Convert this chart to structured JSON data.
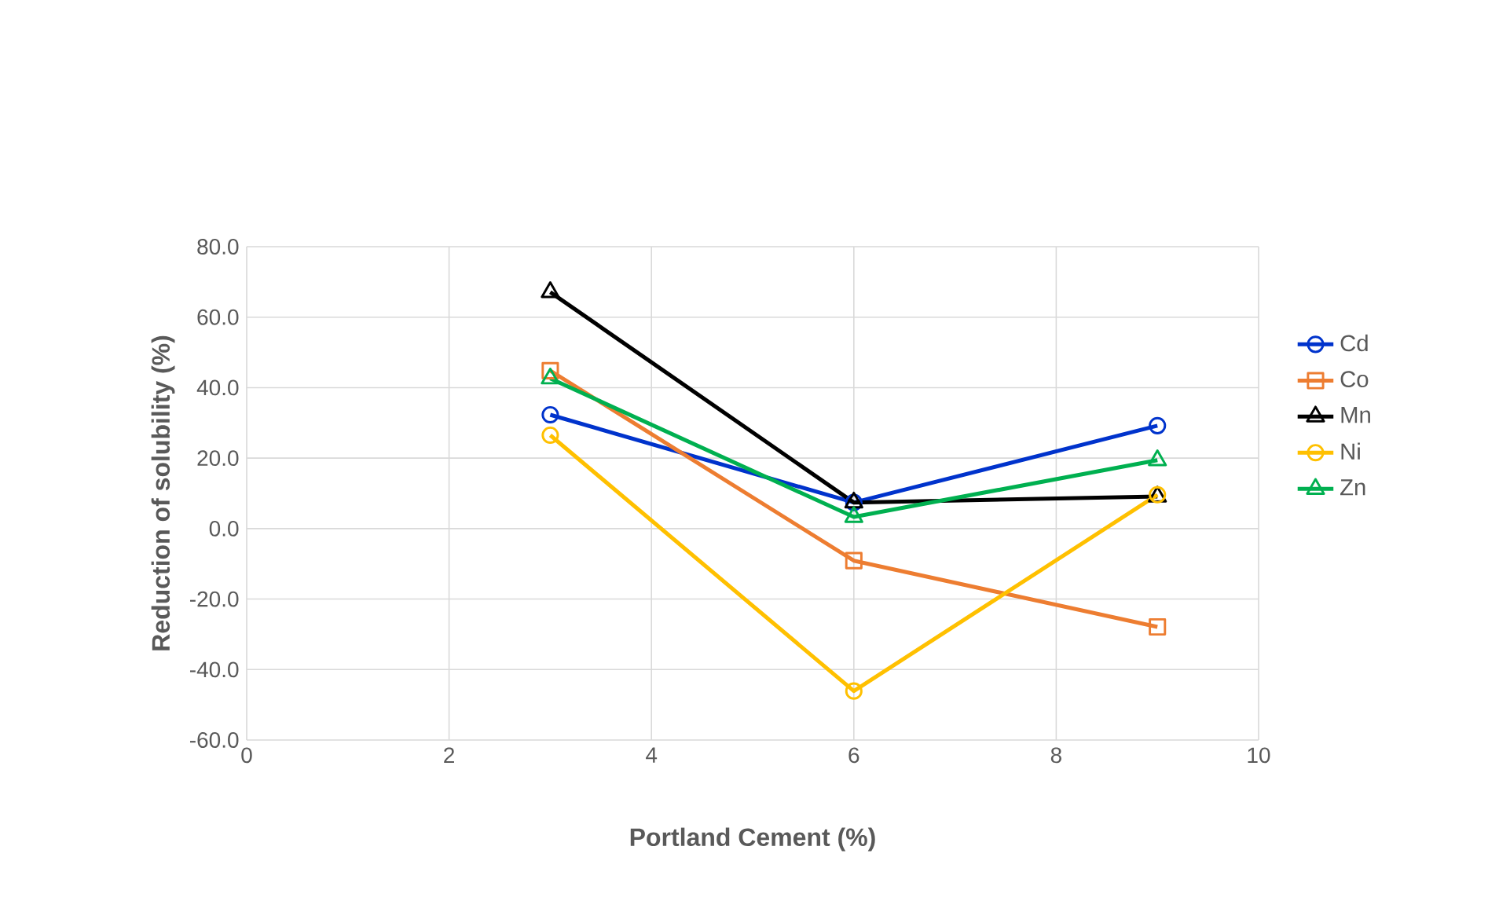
{
  "chart_data": {
    "type": "line",
    "xlabel": "Portland Cement (%)",
    "ylabel": "Reduction of solubility  (%)",
    "xlim": [
      0,
      10
    ],
    "xticks": [
      0,
      2,
      4,
      6,
      8,
      10
    ],
    "ylim": [
      -60,
      80
    ],
    "yticks": [
      {
        "value": -60,
        "label": "-60.0"
      },
      {
        "value": -40,
        "label": "-40.0"
      },
      {
        "value": -20,
        "label": "-20.0"
      },
      {
        "value": 0,
        "label": "0.0"
      },
      {
        "value": 20,
        "label": "20.0"
      },
      {
        "value": 40,
        "label": "40.0"
      },
      {
        "value": 60,
        "label": "60.0"
      },
      {
        "value": 80,
        "label": "80.0"
      }
    ],
    "grid": true,
    "legend": "right",
    "x": [
      3,
      6,
      9
    ],
    "series": [
      {
        "name": "Cd",
        "color": "#0033cc",
        "marker": "circle",
        "values": [
          32.3,
          7.4,
          29.2
        ]
      },
      {
        "name": "Co",
        "color": "#ed7d31",
        "marker": "square",
        "values": [
          44.8,
          -9.1,
          -27.9
        ]
      },
      {
        "name": "Mn",
        "color": "#000000",
        "marker": "triangle",
        "values": [
          67.1,
          7.4,
          9.1
        ]
      },
      {
        "name": "Ni",
        "color": "#ffc000",
        "marker": "circle",
        "values": [
          26.5,
          -46.1,
          9.6
        ]
      },
      {
        "name": "Zn",
        "color": "#00b050",
        "marker": "triangle",
        "values": [
          42.6,
          3.3,
          19.4
        ]
      }
    ]
  }
}
